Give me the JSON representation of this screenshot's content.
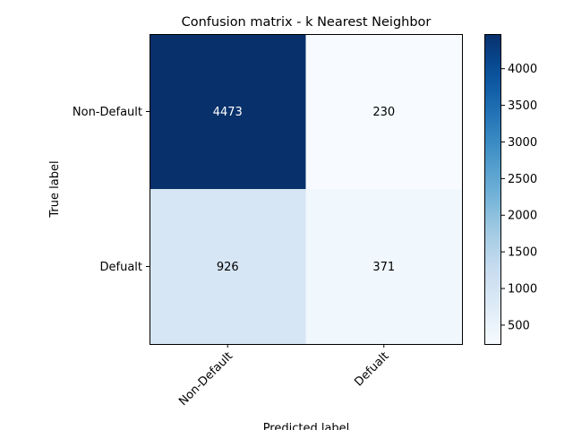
{
  "chart_data": {
    "type": "heatmap",
    "title": "Confusion matrix - k Nearest Neighbor",
    "xlabel": "Predicted label",
    "ylabel": "True label",
    "x_categories": [
      "Non-Default",
      "Defualt"
    ],
    "y_categories": [
      "Non-Default",
      "Defualt"
    ],
    "values": [
      [
        4473,
        230
      ],
      [
        926,
        371
      ]
    ],
    "colormap": "Blues",
    "color_range": [
      230,
      4473
    ],
    "colorbar_ticks": [
      500,
      1000,
      1500,
      2000,
      2500,
      3000,
      3500,
      4000
    ],
    "x_tick_rotation": 45
  }
}
